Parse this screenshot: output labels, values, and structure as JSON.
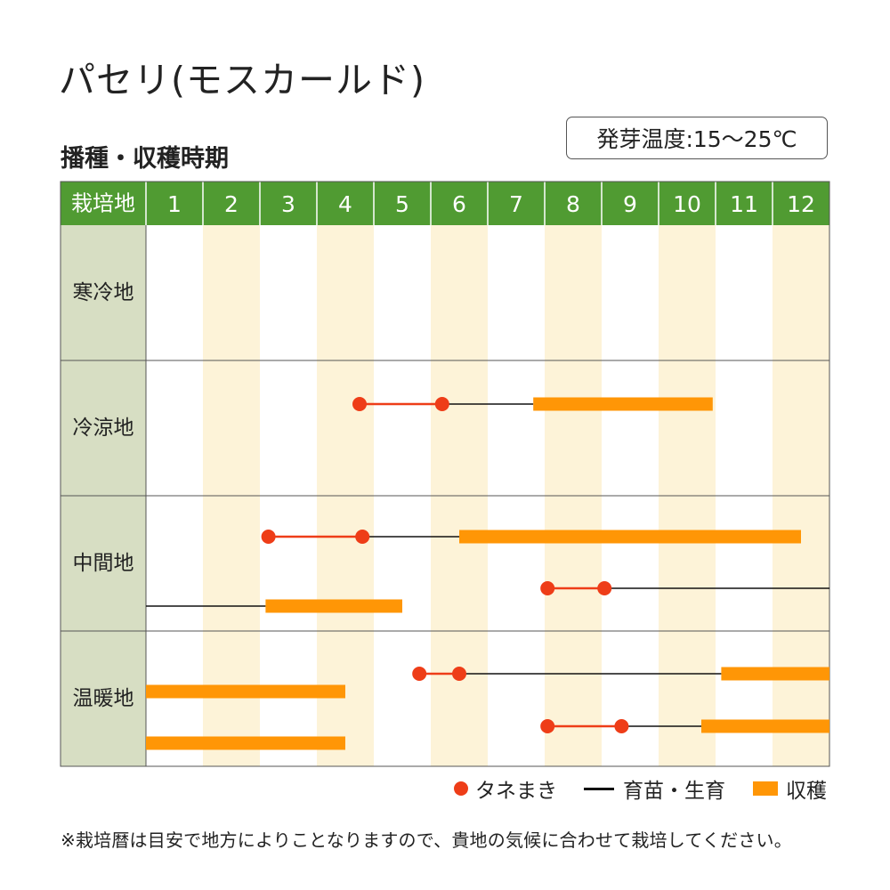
{
  "title": "パセリ(モスカールド)",
  "subtitle": "播種・収穫時期",
  "temp_badge": "発芽温度:15〜25℃",
  "note": "※栽培暦は目安で地方によりことなりますので、貴地の気候に合わせて栽培してください。",
  "colors": {
    "header_green": "#509b32",
    "region_cell": "#d7dec3",
    "stripe": "#fdf3d8",
    "sowing": "#ee3d18",
    "growing": "#111111",
    "harvest": "#ff9606"
  },
  "legend": {
    "sowing": "タネまき",
    "growing": "育苗・生育",
    "harvest": "収穫"
  },
  "chart_data": {
    "type": "gantt",
    "header_label": "栽培地",
    "months": [
      "1",
      "2",
      "3",
      "4",
      "5",
      "6",
      "7",
      "8",
      "9",
      "10",
      "11",
      "12"
    ],
    "x_unit": "month",
    "x_range": [
      1,
      13
    ],
    "regions": [
      {
        "name": "寒冷地",
        "rows": []
      },
      {
        "name": "冷涼地",
        "rows": [
          {
            "sowing": [
              4.75,
              6.2
            ],
            "growing": [
              6.2,
              7.8
            ],
            "harvest": [
              7.8,
              10.95
            ]
          }
        ]
      },
      {
        "name": "中間地",
        "rows": [
          {
            "sowing": [
              3.15,
              4.8
            ],
            "growing": [
              4.8,
              6.5
            ],
            "harvest": [
              6.5,
              12.5
            ]
          },
          {
            "sowing": [
              8.05,
              9.05
            ],
            "growing": [
              9.05,
              13.0
            ],
            "harvest": null
          },
          {
            "sowing": null,
            "growing": [
              1.0,
              3.1
            ],
            "harvest": [
              3.1,
              5.5
            ]
          }
        ]
      },
      {
        "name": "温暖地",
        "rows": [
          {
            "sowing": [
              5.8,
              6.5
            ],
            "growing": [
              6.5,
              11.1
            ],
            "harvest": [
              11.1,
              13.0
            ]
          },
          {
            "sowing": null,
            "growing": null,
            "harvest": [
              1.0,
              4.5
            ]
          },
          {
            "sowing": [
              8.05,
              9.35
            ],
            "growing": [
              9.35,
              10.75
            ],
            "harvest": [
              10.75,
              13.0
            ]
          },
          {
            "sowing": null,
            "growing": null,
            "harvest": [
              1.0,
              4.5
            ]
          }
        ]
      }
    ]
  }
}
